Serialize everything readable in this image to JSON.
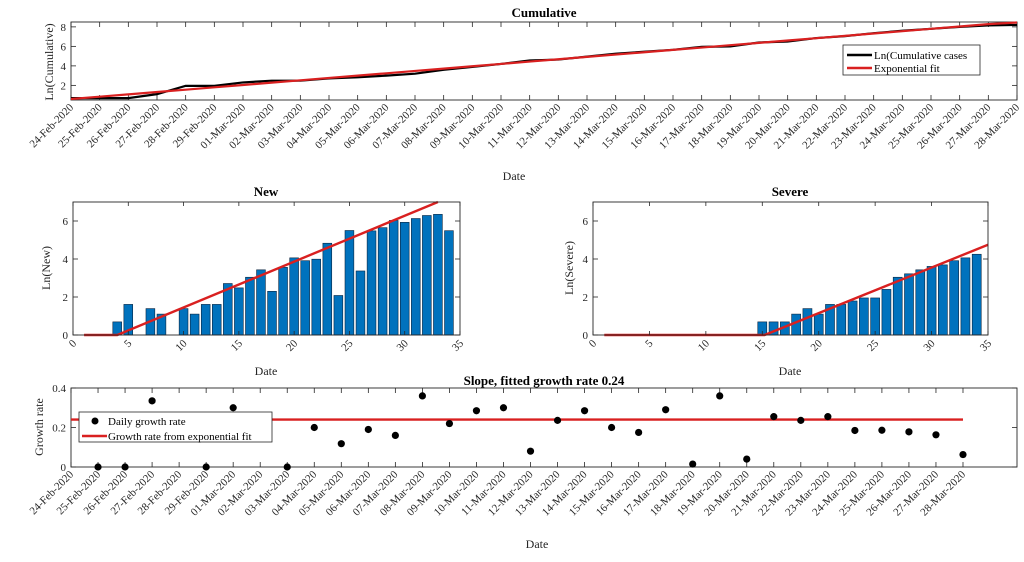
{
  "figure": {
    "background": "#ffffff"
  },
  "colors": {
    "bar_fill": "#0072BD",
    "bar_edge": "#0b2540",
    "fit": "#D92020",
    "data_line": "#000000",
    "axis": "#262626"
  },
  "chart_data": [
    {
      "id": "cumulative",
      "type": "line",
      "title": "Cumulative",
      "xlabel": "Date",
      "ylabel": "Ln(Cumulative)",
      "ylim": [
        0.5,
        8.5
      ],
      "yticks": [
        2,
        4,
        6,
        8
      ],
      "x": [
        "24-Feb-2020",
        "25-Feb-2020",
        "26-Feb-2020",
        "27-Feb-2020",
        "28-Feb-2020",
        "29-Feb-2020",
        "01-Mar-2020",
        "02-Mar-2020",
        "03-Mar-2020",
        "04-Mar-2020",
        "05-Mar-2020",
        "06-Mar-2020",
        "07-Mar-2020",
        "08-Mar-2020",
        "09-Mar-2020",
        "10-Mar-2020",
        "11-Mar-2020",
        "12-Mar-2020",
        "13-Mar-2020",
        "14-Mar-2020",
        "15-Mar-2020",
        "16-Mar-2020",
        "17-Mar-2020",
        "18-Mar-2020",
        "19-Mar-2020",
        "20-Mar-2020",
        "21-Mar-2020",
        "22-Mar-2020",
        "23-Mar-2020",
        "24-Mar-2020",
        "25-Mar-2020",
        "26-Mar-2020",
        "27-Mar-2020",
        "28-Mar-2020"
      ],
      "series": [
        {
          "name": "Ln(Cumulative cases",
          "color": "#000000",
          "values": [
            0.69,
            0.69,
            0.69,
            1.1,
            1.95,
            1.95,
            2.3,
            2.48,
            2.48,
            2.71,
            2.83,
            3.0,
            3.2,
            3.6,
            3.9,
            4.2,
            4.55,
            4.65,
            4.95,
            5.25,
            5.45,
            5.65,
            5.95,
            6.0,
            6.4,
            6.5,
            6.85,
            7.05,
            7.35,
            7.6,
            7.8,
            8.0,
            8.15,
            8.2
          ]
        },
        {
          "name": "Exponential fit",
          "color": "#D92020",
          "values": [
            0.6,
            0.84,
            1.08,
            1.32,
            1.56,
            1.8,
            2.04,
            2.28,
            2.52,
            2.76,
            3.0,
            3.24,
            3.48,
            3.72,
            3.96,
            4.2,
            4.44,
            4.68,
            4.92,
            5.16,
            5.4,
            5.64,
            5.88,
            6.12,
            6.36,
            6.6,
            6.84,
            7.08,
            7.32,
            7.56,
            7.8,
            8.04,
            8.28,
            8.45
          ]
        }
      ],
      "legend": {
        "position": "right",
        "entries": [
          "Ln(Cumulative cases",
          "Exponential fit"
        ]
      }
    },
    {
      "id": "new",
      "type": "bar",
      "title": "New",
      "xlabel": "Date",
      "ylabel": "Ln(New)",
      "xlim": [
        0,
        35
      ],
      "ylim": [
        0,
        7
      ],
      "xticks": [
        0,
        5,
        10,
        15,
        20,
        25,
        30,
        35
      ],
      "yticks": [
        0,
        2,
        4,
        6
      ],
      "x": [
        1,
        2,
        3,
        4,
        5,
        6,
        7,
        8,
        9,
        10,
        11,
        12,
        13,
        14,
        15,
        16,
        17,
        18,
        19,
        20,
        21,
        22,
        23,
        24,
        25,
        26,
        27,
        28,
        29,
        30,
        31,
        32,
        33,
        34
      ],
      "values": [
        0,
        0,
        0,
        0.69,
        1.61,
        0,
        1.39,
        1.1,
        0,
        1.39,
        1.1,
        1.61,
        1.61,
        2.71,
        2.48,
        3.04,
        3.43,
        2.3,
        3.56,
        4.06,
        3.91,
        3.99,
        4.83,
        2.08,
        5.5,
        3.37,
        5.48,
        5.65,
        6.03,
        5.93,
        6.13,
        6.29,
        6.35,
        5.49
      ],
      "fit": {
        "name": "Exponential fit",
        "x": [
          1,
          4,
          33
        ],
        "y": [
          0,
          0,
          7.0
        ]
      }
    },
    {
      "id": "severe",
      "type": "bar",
      "title": "Severe",
      "xlabel": "Date",
      "ylabel": "Ln(Severe)",
      "xlim": [
        0,
        35
      ],
      "ylim": [
        0,
        7
      ],
      "xticks": [
        0,
        5,
        10,
        15,
        20,
        25,
        30,
        35
      ],
      "yticks": [
        0,
        2,
        4,
        6
      ],
      "x": [
        1,
        2,
        3,
        4,
        5,
        6,
        7,
        8,
        9,
        10,
        11,
        12,
        13,
        14,
        15,
        16,
        17,
        18,
        19,
        20,
        21,
        22,
        23,
        24,
        25,
        26,
        27,
        28,
        29,
        30,
        31,
        32,
        33,
        34
      ],
      "values": [
        0,
        0,
        0,
        0,
        0,
        0,
        0,
        0,
        0,
        0,
        0,
        0,
        0,
        0,
        0.69,
        0.69,
        0.69,
        1.1,
        1.39,
        1.1,
        1.61,
        1.61,
        1.79,
        1.95,
        1.95,
        2.4,
        3.04,
        3.22,
        3.43,
        3.61,
        3.69,
        3.91,
        4.06,
        4.25
      ],
      "fit": {
        "name": "Exponential fit",
        "x": [
          1,
          15.2,
          35
        ],
        "y": [
          0,
          0,
          4.75
        ]
      }
    },
    {
      "id": "slope",
      "type": "scatter",
      "title": "Slope, fitted growth rate 0.24",
      "xlabel": "Date",
      "ylabel": "Growth rate",
      "ylim": [
        0,
        0.4
      ],
      "yticks": [
        0,
        0.2,
        0.4
      ],
      "x": [
        "24-Feb-2020",
        "25-Feb-2020",
        "26-Feb-2020",
        "27-Feb-2020",
        "28-Feb-2020",
        "29-Feb-2020",
        "01-Mar-2020",
        "02-Mar-2020",
        "03-Mar-2020",
        "04-Mar-2020",
        "05-Mar-2020",
        "06-Mar-2020",
        "07-Mar-2020",
        "08-Mar-2020",
        "09-Mar-2020",
        "10-Mar-2020",
        "11-Mar-2020",
        "12-Mar-2020",
        "13-Mar-2020",
        "14-Mar-2020",
        "15-Mar-2020",
        "16-Mar-2020",
        "17-Mar-2020",
        "18-Mar-2020",
        "19-Mar-2020",
        "20-Mar-2020",
        "21-Mar-2020",
        "22-Mar-2020",
        "23-Mar-2020",
        "24-Mar-2020",
        "25-Mar-2020",
        "26-Mar-2020",
        "27-Mar-2020",
        "28-Mar-2020"
      ],
      "series": [
        {
          "name": "Daily growth rate",
          "marker": "dot",
          "points": [
            [
              2,
              0
            ],
            [
              3,
              0
            ],
            [
              4,
              0.335
            ],
            [
              6,
              0
            ],
            [
              7,
              0.3
            ],
            [
              9,
              0
            ],
            [
              10,
              0.2
            ],
            [
              11,
              0.118
            ],
            [
              12,
              0.19
            ],
            [
              13,
              0.16
            ],
            [
              14,
              0.36
            ],
            [
              15,
              0.22
            ],
            [
              16,
              0.285
            ],
            [
              17,
              0.3
            ],
            [
              18,
              0.08
            ],
            [
              19,
              0.236
            ],
            [
              20,
              0.285
            ],
            [
              21,
              0.2
            ],
            [
              22,
              0.175
            ],
            [
              23,
              0.29
            ],
            [
              24,
              0.015
            ],
            [
              25,
              0.36
            ],
            [
              26,
              0.04
            ],
            [
              27,
              0.255
            ],
            [
              28,
              0.236
            ],
            [
              29,
              0.255
            ],
            [
              30,
              0.185
            ],
            [
              31,
              0.186
            ],
            [
              32,
              0.178
            ],
            [
              33,
              0.163
            ],
            [
              34,
              0.063
            ]
          ]
        },
        {
          "name": "Growth rate from exponential fit",
          "value": 0.24,
          "x_range": [
            1,
            34
          ]
        }
      ],
      "legend": {
        "position": "top-left",
        "entries": [
          "Daily growth rate",
          "Growth rate from exponential fit"
        ]
      }
    }
  ]
}
